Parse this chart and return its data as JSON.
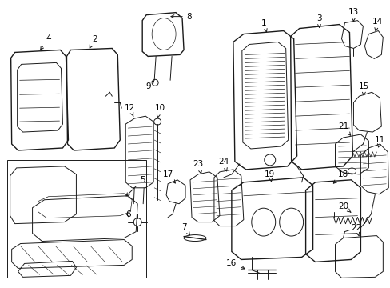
{
  "bg_color": "#ffffff",
  "line_color": "#1a1a1a",
  "label_color": "#000000",
  "figsize": [
    4.89,
    3.6
  ],
  "dpi": 100
}
